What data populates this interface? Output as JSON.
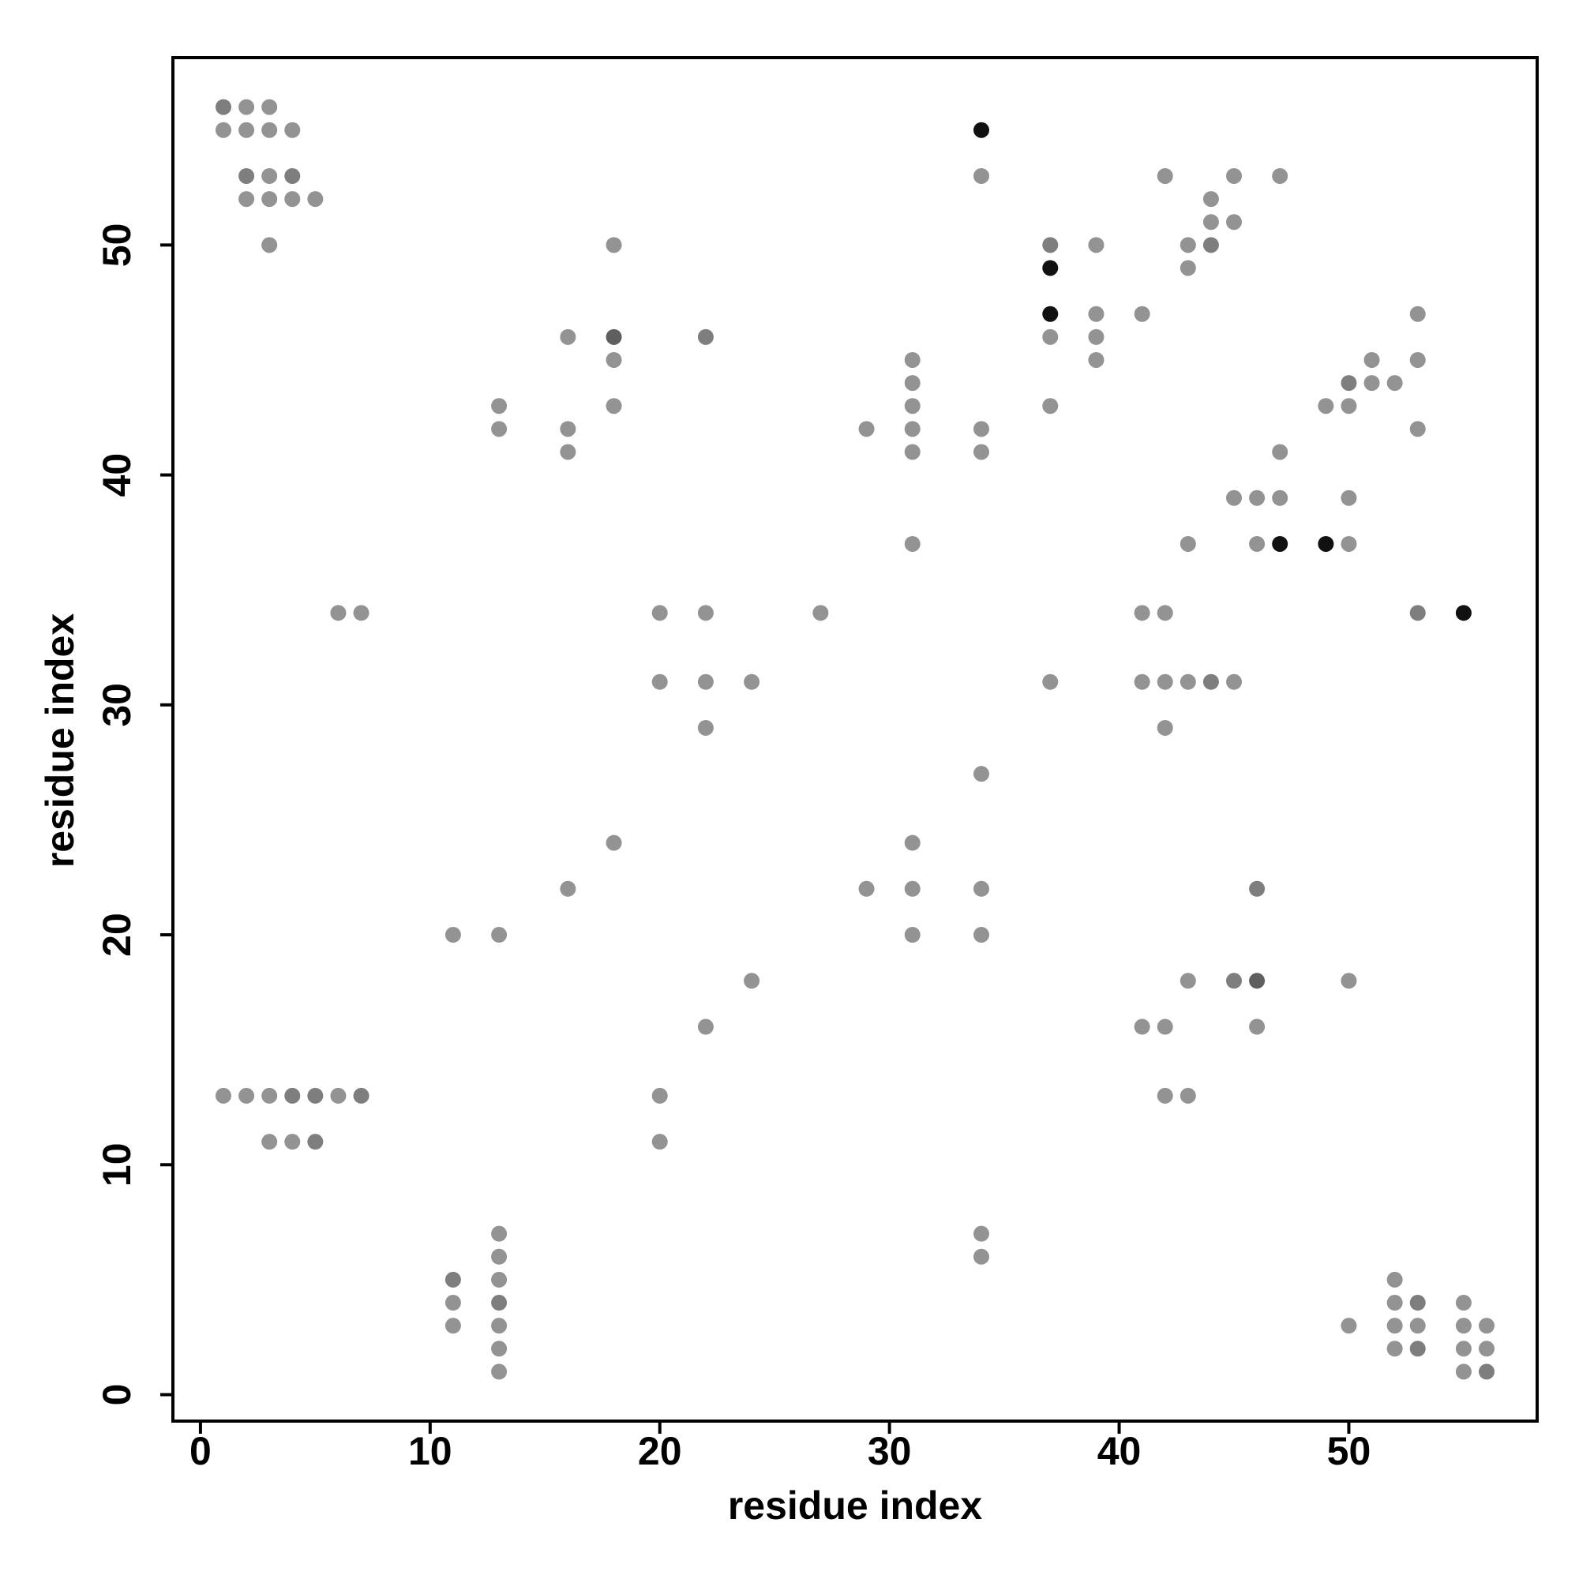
{
  "chart_data": {
    "type": "scatter",
    "xlabel": "residue index",
    "ylabel": "residue index",
    "xlim": [
      -1.2,
      58.2
    ],
    "ylim": [
      -1.15,
      58.15
    ],
    "xticks": [
      0,
      10,
      20,
      30,
      40,
      50
    ],
    "yticks": [
      0,
      10,
      20,
      30,
      40,
      50
    ],
    "grid": false,
    "series": [
      {
        "color": "#939393",
        "x": [
          2,
          3,
          1,
          2,
          3,
          4,
          3,
          34,
          42,
          45,
          47,
          2,
          3,
          4,
          5,
          44,
          44,
          45,
          3,
          18,
          39,
          43,
          43,
          39,
          41,
          53,
          16,
          37,
          39,
          18,
          31,
          39,
          51,
          53,
          31,
          51,
          52,
          13,
          18,
          31,
          37,
          49,
          50,
          13,
          16,
          29,
          31,
          34,
          53,
          16,
          31,
          34,
          47,
          45,
          46,
          47,
          50,
          31,
          43,
          46,
          50,
          6,
          7,
          20,
          22,
          27,
          41,
          42,
          20,
          22,
          24,
          37,
          41,
          42,
          43,
          45,
          22,
          42,
          34,
          18,
          31,
          16,
          29,
          31,
          34,
          11,
          13,
          31,
          34,
          24,
          43,
          50,
          22,
          41,
          42,
          46,
          1,
          2,
          3,
          6,
          20,
          42,
          43,
          3,
          4,
          20,
          13,
          34,
          13,
          34,
          13,
          52,
          11,
          52,
          55,
          11,
          13,
          50,
          52,
          53,
          55,
          56,
          13,
          52,
          55,
          56,
          13,
          55
        ],
        "values": [
          56,
          56,
          55,
          55,
          55,
          55,
          53,
          53,
          53,
          53,
          53,
          52,
          52,
          52,
          52,
          52,
          51,
          51,
          50,
          50,
          50,
          50,
          49,
          47,
          47,
          47,
          46,
          46,
          46,
          45,
          45,
          45,
          45,
          45,
          44,
          44,
          44,
          43,
          43,
          43,
          43,
          43,
          43,
          42,
          42,
          42,
          42,
          42,
          42,
          41,
          41,
          41,
          41,
          39,
          39,
          39,
          39,
          37,
          37,
          37,
          37,
          34,
          34,
          34,
          34,
          34,
          34,
          34,
          31,
          31,
          31,
          31,
          31,
          31,
          31,
          31,
          29,
          29,
          27,
          24,
          24,
          22,
          22,
          22,
          22,
          20,
          20,
          20,
          20,
          18,
          18,
          18,
          16,
          16,
          16,
          16,
          13,
          13,
          13,
          13,
          13,
          13,
          13,
          11,
          11,
          11,
          7,
          7,
          6,
          6,
          5,
          5,
          4,
          4,
          4,
          3,
          3,
          3,
          3,
          3,
          3,
          3,
          2,
          2,
          2,
          2,
          1,
          1
        ]
      },
      {
        "color": "#7e7e7e",
        "x": [
          1,
          2,
          4,
          37,
          44,
          22,
          50,
          53,
          44,
          46,
          45,
          4,
          5,
          7,
          5,
          11,
          13,
          53,
          53,
          56
        ],
        "values": [
          56,
          53,
          53,
          50,
          50,
          46,
          44,
          34,
          31,
          22,
          18,
          13,
          13,
          13,
          11,
          5,
          4,
          4,
          2,
          1
        ]
      },
      {
        "color": "#5f5f5f",
        "x": [
          18,
          46
        ],
        "values": [
          46,
          18
        ]
      },
      {
        "color": "#111111",
        "x": [
          34,
          37,
          37,
          47,
          49,
          55
        ],
        "values": [
          55,
          49,
          47,
          37,
          37,
          34
        ]
      }
    ]
  }
}
